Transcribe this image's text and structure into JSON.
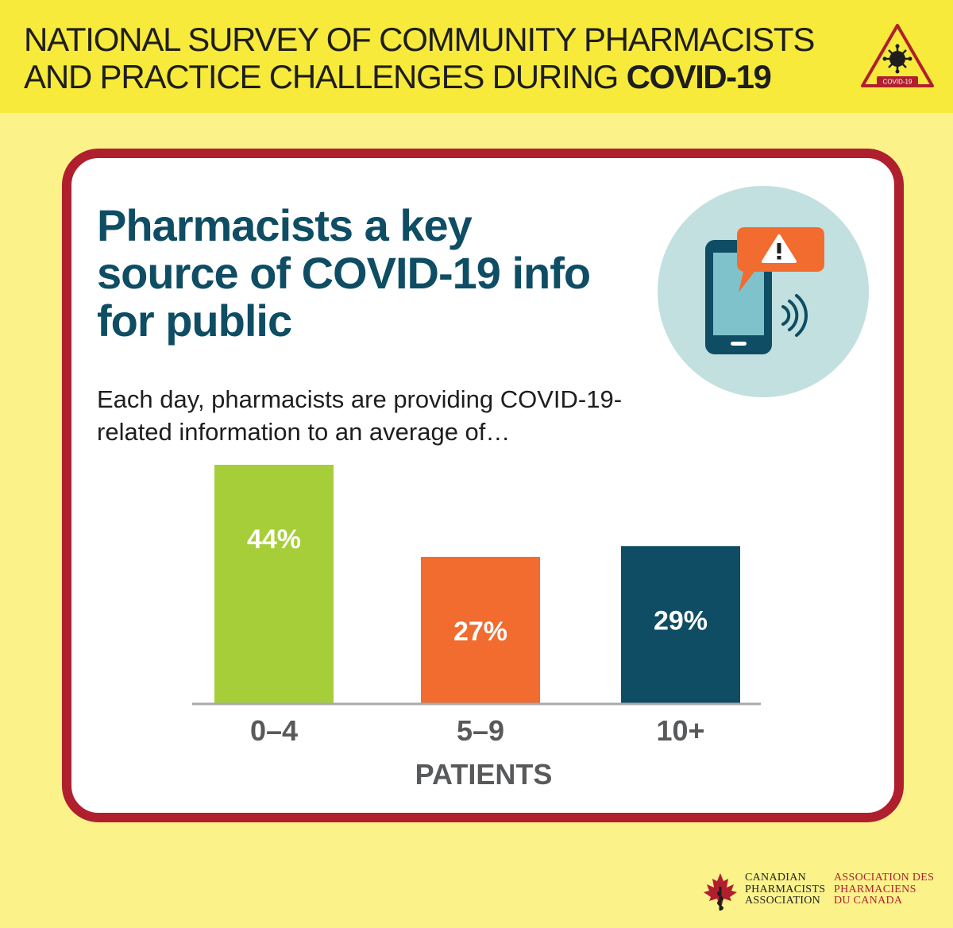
{
  "header": {
    "title_line1": "National Survey of Community Pharmacists",
    "title_line2_regular": "and Practice Challenges During ",
    "title_line2_bold": "COVID-19",
    "badge_label": "COVID-19",
    "badge_icon": "virus-warning-icon",
    "background_color": "#f8ea3a"
  },
  "card": {
    "title": "Pharmacists a key source of COVID-19 info for public",
    "subtitle": "Each day, pharmacists are providing COVID-19-related information to an average of…",
    "illustration_icon": "phone-alert-icon",
    "border_color": "#b01f2e"
  },
  "chart_data": {
    "type": "bar",
    "categories": [
      "0–4",
      "5–9",
      "10+"
    ],
    "values": [
      44,
      27,
      29
    ],
    "value_labels": [
      "44%",
      "27%",
      "29%"
    ],
    "colors": [
      "#a6ce39",
      "#f26b2f",
      "#0e4d63"
    ],
    "title": "",
    "xlabel": "PATIENTS",
    "ylabel": "",
    "ylim": [
      0,
      44
    ],
    "grid": false,
    "legend": "none"
  },
  "footer": {
    "org_en": "Canadian\nPharmacists\nAssociation",
    "org_fr": "Association des\nPharmaciens\ndu Canada",
    "logo_icon": "maple-leaf-caduceus-icon"
  }
}
